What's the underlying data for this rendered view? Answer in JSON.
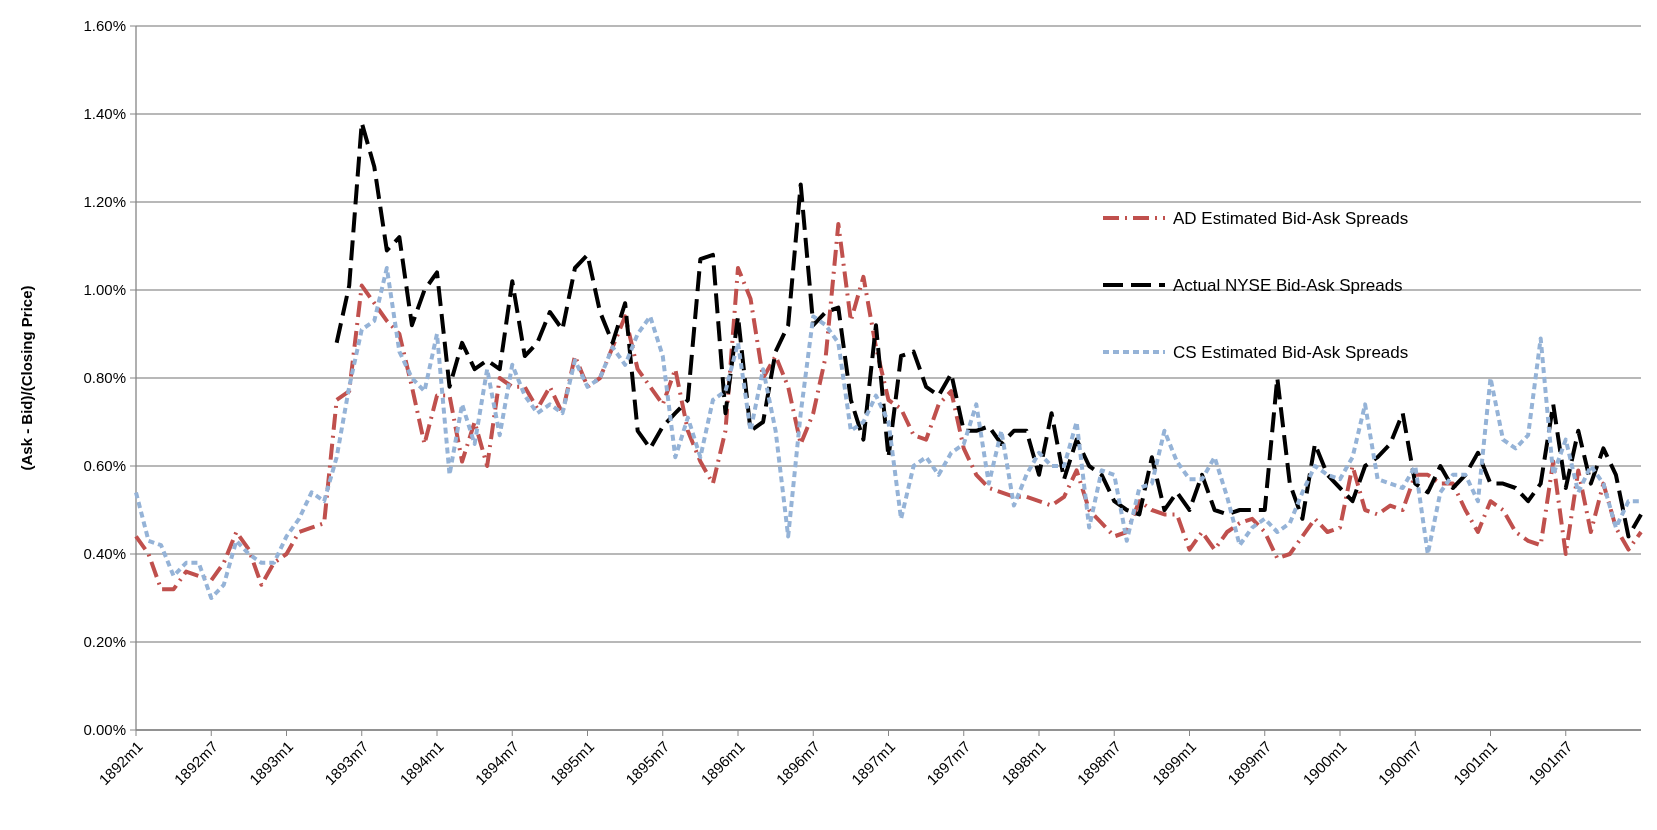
{
  "chart_data": {
    "type": "line",
    "ylabel": "(Ask - Bid)/(Closing Price)",
    "categories": [
      "1892m1",
      null,
      null,
      null,
      null,
      null,
      "1892m7",
      null,
      null,
      null,
      null,
      null,
      "1893m1",
      null,
      null,
      null,
      null,
      null,
      "1893m7",
      null,
      null,
      null,
      null,
      null,
      "1894m1",
      null,
      null,
      null,
      null,
      null,
      "1894m7",
      null,
      null,
      null,
      null,
      null,
      "1895m1",
      null,
      null,
      null,
      null,
      null,
      "1895m7",
      null,
      null,
      null,
      null,
      null,
      "1896m1",
      null,
      null,
      null,
      null,
      null,
      "1896m7",
      null,
      null,
      null,
      null,
      null,
      "1897m1",
      null,
      null,
      null,
      null,
      null,
      "1897m7",
      null,
      null,
      null,
      null,
      null,
      "1898m1",
      null,
      null,
      null,
      null,
      null,
      "1898m7",
      null,
      null,
      null,
      null,
      null,
      "1899m1",
      null,
      null,
      null,
      null,
      null,
      "1899m7",
      null,
      null,
      null,
      null,
      null,
      "1900m1",
      null,
      null,
      null,
      null,
      null,
      "1900m7",
      null,
      null,
      null,
      null,
      null,
      "1901m1",
      null,
      null,
      null,
      null,
      null,
      "1901m7",
      null,
      null,
      null,
      null,
      null,
      null
    ],
    "series": [
      {
        "name": "AD Estimated Bid-Ask Spreads",
        "color": "#c0504d",
        "line_style": "dashed",
        "values": [
          0.44,
          0.4,
          0.32,
          0.32,
          0.36,
          0.35,
          0.34,
          0.38,
          0.45,
          0.41,
          0.33,
          0.38,
          0.4,
          0.45,
          0.46,
          0.47,
          0.75,
          0.77,
          1.01,
          0.97,
          0.93,
          0.9,
          0.78,
          0.65,
          0.76,
          0.76,
          0.61,
          0.7,
          0.6,
          0.8,
          0.78,
          0.78,
          0.73,
          0.78,
          0.72,
          0.85,
          0.78,
          0.8,
          0.87,
          0.94,
          0.82,
          0.78,
          0.74,
          0.82,
          0.68,
          0.61,
          0.56,
          0.68,
          1.05,
          0.98,
          0.8,
          0.85,
          0.78,
          0.65,
          0.72,
          0.85,
          1.15,
          0.93,
          1.03,
          0.87,
          0.75,
          0.73,
          0.67,
          0.66,
          0.74,
          0.77,
          0.64,
          0.58,
          0.55,
          0.54,
          0.53,
          0.53,
          0.52,
          0.51,
          0.53,
          0.59,
          0.5,
          0.47,
          0.44,
          0.45,
          0.52,
          0.5,
          0.49,
          0.49,
          0.41,
          0.45,
          0.41,
          0.45,
          0.47,
          0.48,
          0.45,
          0.39,
          0.4,
          0.44,
          0.48,
          0.45,
          0.46,
          0.6,
          0.5,
          0.49,
          0.51,
          0.5,
          0.58,
          0.58,
          0.56,
          0.56,
          0.5,
          0.45,
          0.52,
          0.5,
          0.45,
          0.43,
          0.42,
          0.61,
          0.4,
          0.59,
          0.45,
          0.56,
          0.46,
          0.41,
          0.45
        ]
      },
      {
        "name": "Actual NYSE Bid-Ask Spreads",
        "color": "#000000",
        "line_style": "dashed",
        "values": [
          null,
          null,
          null,
          null,
          null,
          null,
          null,
          null,
          null,
          null,
          null,
          null,
          null,
          null,
          null,
          null,
          0.88,
          1.01,
          1.38,
          1.28,
          1.09,
          1.12,
          0.92,
          1.0,
          1.04,
          0.78,
          0.88,
          0.82,
          0.84,
          0.82,
          1.02,
          0.85,
          0.88,
          0.95,
          0.91,
          1.05,
          1.08,
          0.95,
          0.88,
          0.97,
          0.68,
          0.64,
          0.69,
          0.72,
          0.75,
          1.07,
          1.08,
          0.72,
          0.94,
          0.68,
          0.7,
          0.86,
          0.92,
          1.24,
          0.92,
          0.95,
          0.96,
          0.75,
          0.66,
          0.92,
          0.62,
          0.85,
          0.86,
          0.78,
          0.76,
          0.81,
          0.68,
          0.68,
          0.69,
          0.65,
          0.68,
          0.68,
          0.58,
          0.72,
          0.57,
          0.66,
          0.6,
          0.58,
          0.52,
          0.5,
          0.49,
          0.62,
          0.5,
          0.54,
          0.5,
          0.58,
          0.5,
          0.49,
          0.5,
          0.5,
          0.5,
          0.8,
          0.56,
          0.48,
          0.65,
          0.58,
          0.55,
          0.52,
          0.6,
          0.62,
          0.65,
          0.72,
          0.56,
          0.54,
          0.6,
          0.55,
          0.58,
          0.63,
          0.56,
          0.56,
          0.55,
          0.52,
          0.56,
          0.74,
          0.55,
          0.68,
          0.56,
          0.64,
          0.58,
          0.44,
          0.49
        ]
      },
      {
        "name": "CS Estimated Bid-Ask Spreads",
        "color": "#95b3d7",
        "line_style": "dashed",
        "values": [
          0.54,
          0.43,
          0.42,
          0.35,
          0.38,
          0.38,
          0.3,
          0.33,
          0.43,
          0.4,
          0.38,
          0.38,
          0.44,
          0.48,
          0.54,
          0.52,
          0.62,
          0.78,
          0.91,
          0.93,
          1.05,
          0.86,
          0.8,
          0.77,
          0.9,
          0.58,
          0.74,
          0.65,
          0.82,
          0.67,
          0.83,
          0.76,
          0.72,
          0.74,
          0.72,
          0.84,
          0.78,
          0.8,
          0.87,
          0.83,
          0.9,
          0.94,
          0.85,
          0.62,
          0.71,
          0.62,
          0.75,
          0.77,
          0.88,
          0.68,
          0.82,
          0.68,
          0.44,
          0.72,
          0.94,
          0.92,
          0.88,
          0.68,
          0.7,
          0.76,
          0.7,
          0.48,
          0.6,
          0.62,
          0.58,
          0.63,
          0.65,
          0.74,
          0.56,
          0.68,
          0.51,
          0.58,
          0.63,
          0.6,
          0.6,
          0.7,
          0.46,
          0.59,
          0.58,
          0.43,
          0.55,
          0.56,
          0.68,
          0.61,
          0.57,
          0.57,
          0.62,
          0.53,
          0.42,
          0.46,
          0.48,
          0.45,
          0.47,
          0.54,
          0.6,
          0.58,
          0.57,
          0.62,
          0.74,
          0.57,
          0.56,
          0.55,
          0.6,
          0.4,
          0.54,
          0.58,
          0.58,
          0.52,
          0.8,
          0.66,
          0.64,
          0.67,
          0.89,
          0.58,
          0.66,
          0.54,
          0.6,
          0.56,
          0.46,
          0.52,
          0.52
        ]
      }
    ],
    "ylim": [
      0,
      1.6
    ],
    "yticks": [
      {
        "value": 0,
        "label": "0.00%"
      },
      {
        "value": 0.2,
        "label": "0.20%"
      },
      {
        "value": 0.4,
        "label": "0.40%"
      },
      {
        "value": 0.6,
        "label": "0.60%"
      },
      {
        "value": 0.8,
        "label": "0.80%"
      },
      {
        "value": 1.0,
        "label": "1.00%"
      },
      {
        "value": 1.2,
        "label": "1.20%"
      },
      {
        "value": 1.4,
        "label": "1.40%"
      },
      {
        "value": 1.6,
        "label": "1.60%"
      }
    ],
    "grid": "y",
    "legend": "right",
    "marker": "none"
  }
}
